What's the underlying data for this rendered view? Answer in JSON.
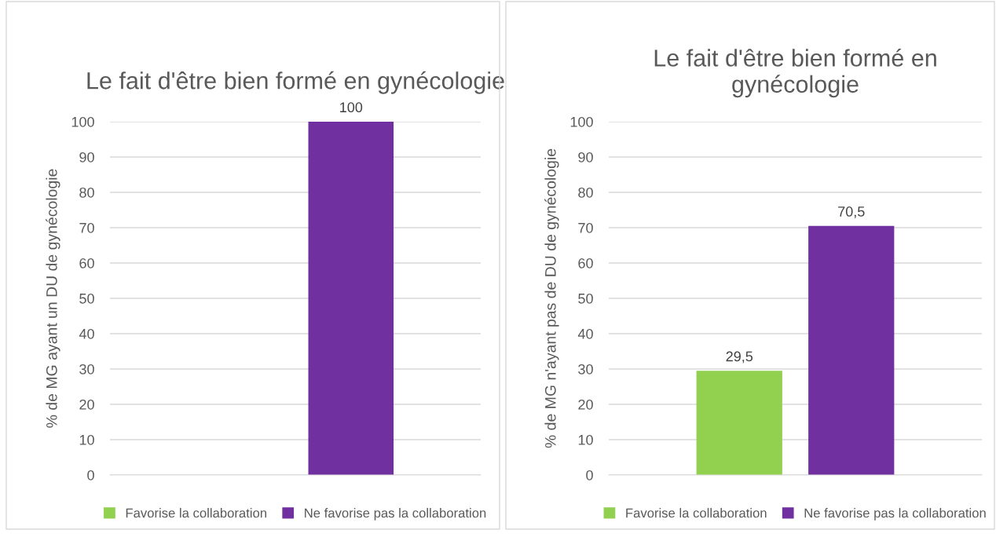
{
  "chart_data": [
    {
      "type": "bar",
      "title": "Le fait d'être bien formé en gynécologie",
      "ylabel": "% de MG ayant un DU de gynécologie",
      "categories": [
        null
      ],
      "series": [
        {
          "name": "Favorise la collaboration",
          "color": "#92d050",
          "values": [
            null
          ],
          "value_labels": [
            null
          ]
        },
        {
          "name": "Ne favorise pas la collaboration",
          "color": "#7030a0",
          "values": [
            100
          ],
          "value_labels": [
            "100"
          ]
        }
      ],
      "ylim": [
        0,
        100
      ],
      "yticks": [
        0,
        10,
        20,
        30,
        40,
        50,
        60,
        70,
        80,
        90,
        100
      ],
      "grid": "y",
      "legend": "bottom"
    },
    {
      "type": "bar",
      "title": "Le fait d'être bien formé en gynécologie",
      "ylabel": "% de MG n'ayant pas de DU de gynécologie",
      "categories": [
        null
      ],
      "series": [
        {
          "name": "Favorise la collaboration",
          "color": "#92d050",
          "values": [
            29.5
          ],
          "value_labels": [
            "29,5"
          ]
        },
        {
          "name": "Ne favorise pas la collaboration",
          "color": "#7030a0",
          "values": [
            70.5
          ],
          "value_labels": [
            "70,5"
          ]
        }
      ],
      "ylim": [
        0,
        100
      ],
      "yticks": [
        0,
        10,
        20,
        30,
        40,
        50,
        60,
        70,
        80,
        90,
        100
      ],
      "grid": "y",
      "legend": "bottom"
    }
  ]
}
